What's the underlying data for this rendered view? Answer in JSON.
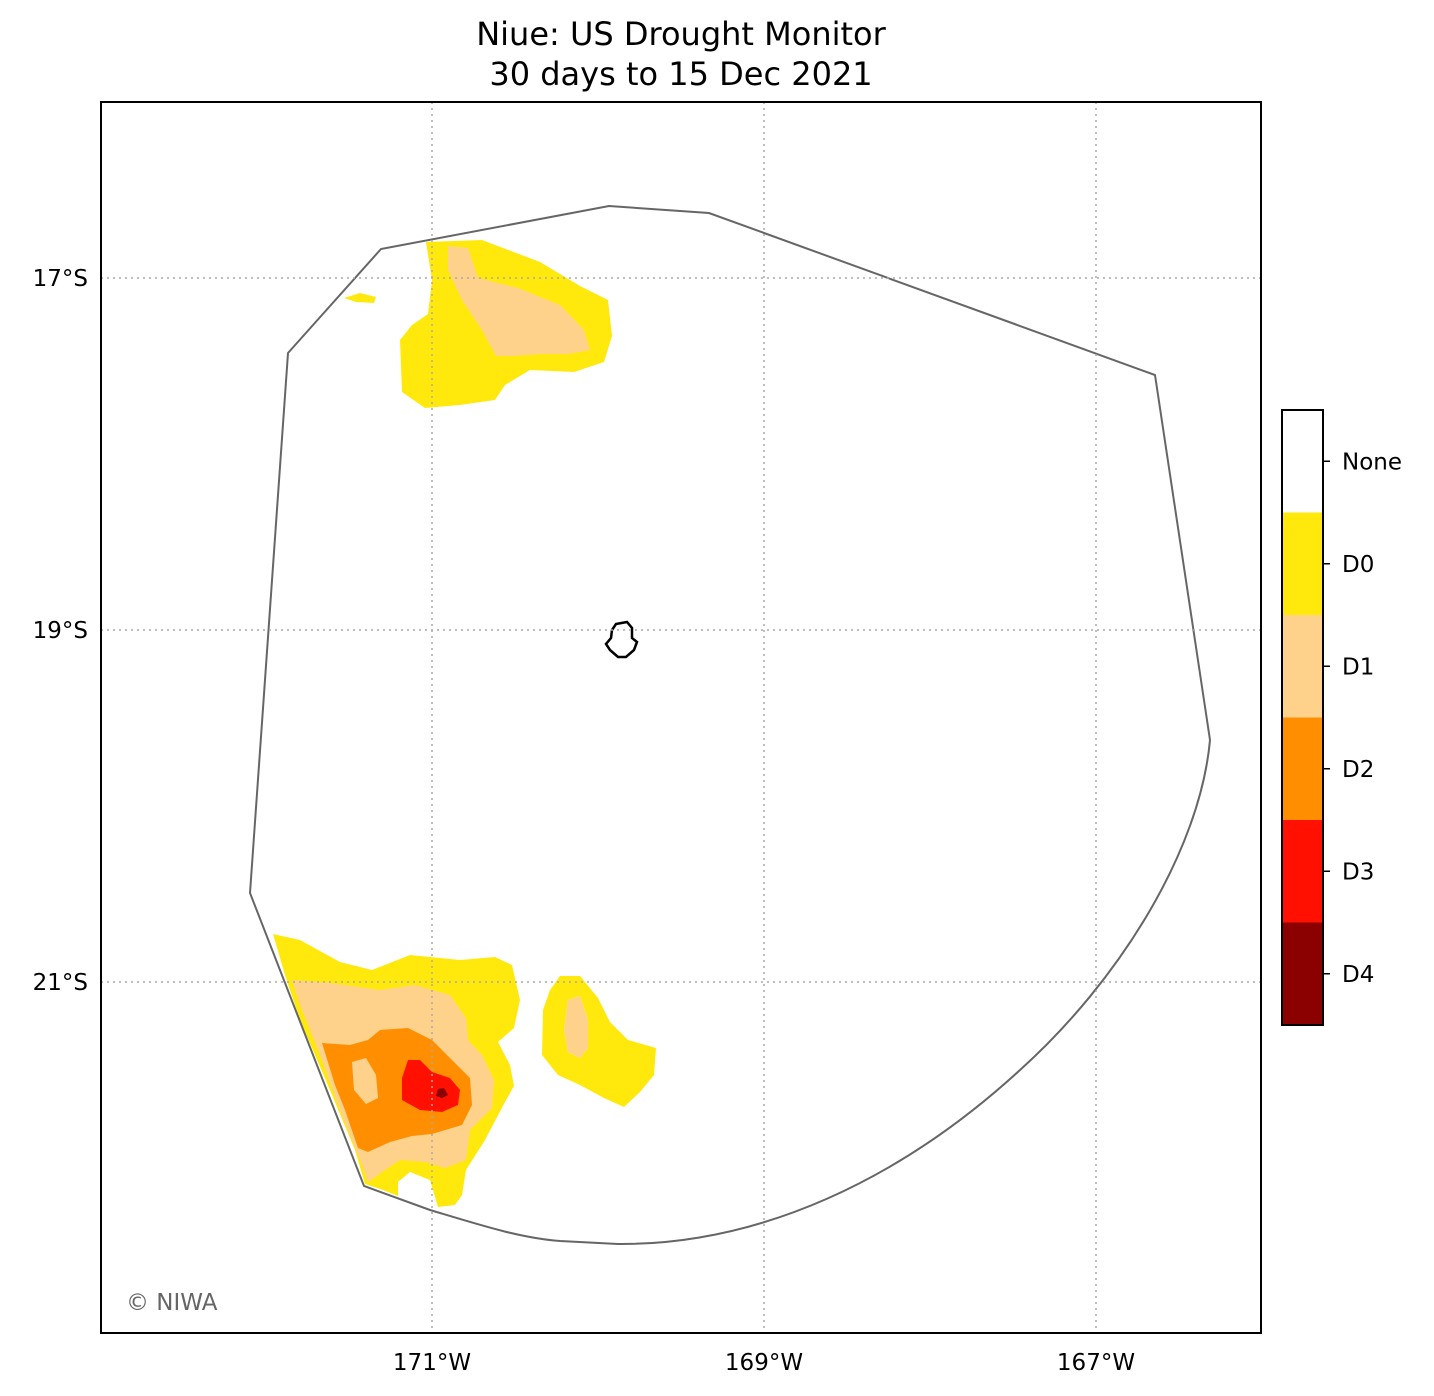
{
  "title": {
    "line1": "Niue: US Drought Monitor",
    "line2": "30 days to 15 Dec 2021"
  },
  "axes": {
    "x_ticks": [
      "171°W",
      "169°W",
      "167°W"
    ],
    "y_ticks": [
      "17°S",
      "19°S",
      "21°S"
    ],
    "grid": "dotted",
    "x_range_deg_west": [
      173.0,
      166.0
    ],
    "y_range_deg_south": [
      16.0,
      23.0
    ]
  },
  "legend": {
    "placement": "right",
    "categories": [
      {
        "label": "None",
        "color": "#ffffff"
      },
      {
        "label": "D0",
        "color": "#ffe90d"
      },
      {
        "label": "D1",
        "color": "#ffd28c"
      },
      {
        "label": "D2",
        "color": "#ff8f00"
      },
      {
        "label": "D3",
        "color": "#ff1000"
      },
      {
        "label": "D4",
        "color": "#8b0000"
      }
    ]
  },
  "colors": {
    "eez_boundary": "#666666",
    "island_outline": "#000000",
    "gridlines": "#aaaaaa"
  },
  "features": {
    "island": "Niue",
    "boundary": "EEZ boundary"
  },
  "copyright": "© NIWA"
}
